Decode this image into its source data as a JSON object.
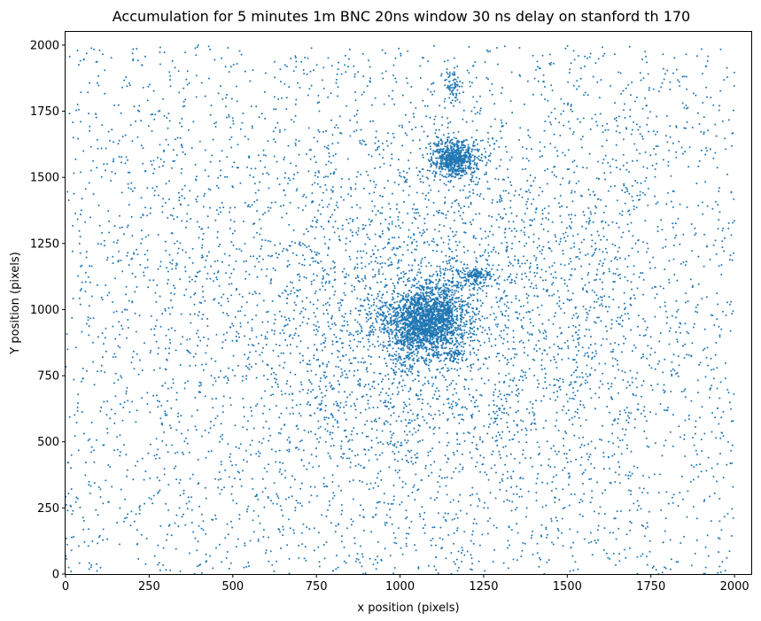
{
  "chart_data": {
    "type": "scatter",
    "title": "Accumulation for 5 minutes 1m BNC 20ns window 30 ns delay on stanford th 170",
    "xlabel": "x position (pixels)",
    "ylabel": "Y position (pixels)",
    "xlim": [
      0,
      2050
    ],
    "ylim": [
      0,
      2050
    ],
    "xticks": [
      0,
      250,
      500,
      750,
      1000,
      1250,
      1500,
      1750,
      2000
    ],
    "yticks": [
      0,
      250,
      500,
      750,
      1000,
      1250,
      1500,
      1750,
      2000
    ],
    "grid": false,
    "legend": "none",
    "marker_color": "#1f77b4",
    "marker": "small dots",
    "estimated_total_points": 9000,
    "distribution": {
      "background": {
        "x_range": [
          0,
          2000
        ],
        "y_range": [
          0,
          2000
        ],
        "approx_points": 3400
      },
      "diffuse_halo": {
        "center": [
          1080,
          950
        ],
        "spread": 380,
        "approx_points": 2800
      },
      "clusters": [
        {
          "center": [
            1080,
            960
          ],
          "spread": [
            60,
            60
          ],
          "approx_points": 1900
        },
        {
          "center": [
            1165,
            1570
          ],
          "spread": [
            35,
            35
          ],
          "approx_points": 700
        },
        {
          "center": [
            1230,
            1130
          ],
          "spread": [
            25,
            15
          ],
          "approx_points": 140
        },
        {
          "center": [
            1160,
            1840
          ],
          "spread": [
            15,
            30
          ],
          "approx_points": 70
        },
        {
          "center": [
            1160,
            830
          ],
          "spread": [
            15,
            15
          ],
          "approx_points": 60
        },
        {
          "center": [
            1020,
            820
          ],
          "spread": [
            25,
            50
          ],
          "approx_points": 80
        },
        {
          "center": [
            1130,
            1100
          ],
          "spread": [
            40,
            40
          ],
          "approx_points": 90
        }
      ]
    }
  }
}
